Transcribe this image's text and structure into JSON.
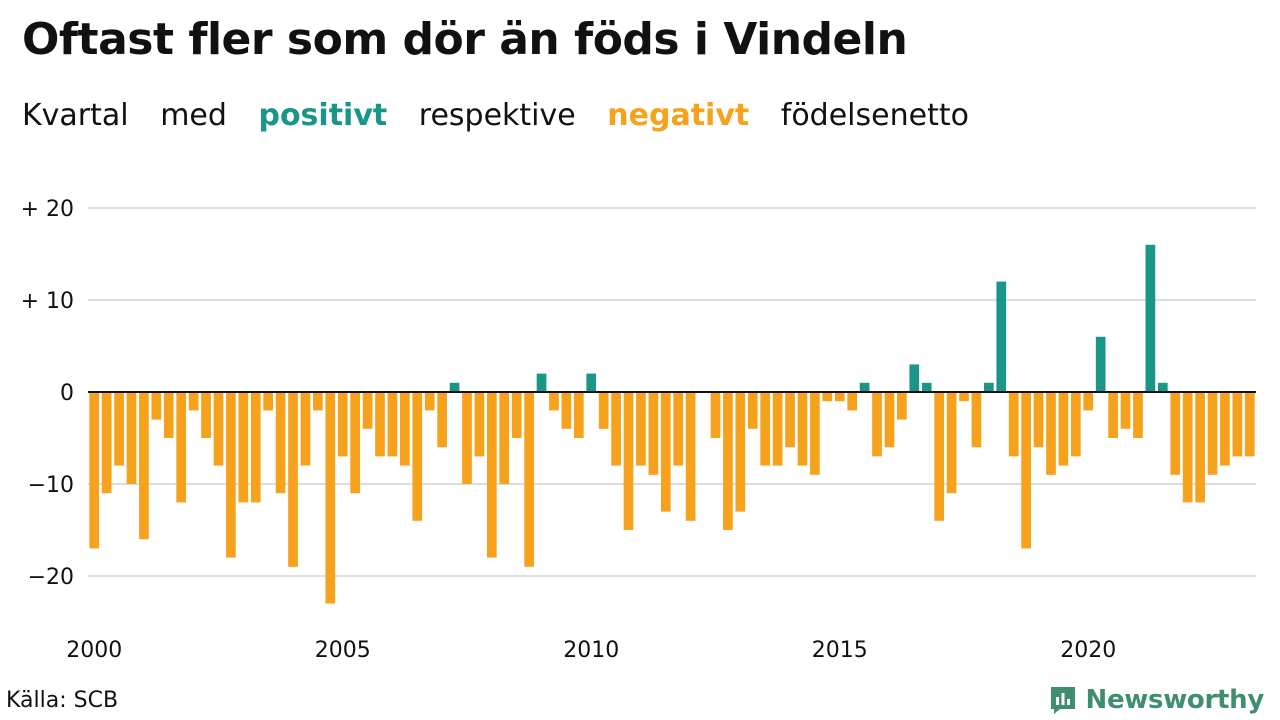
{
  "colors": {
    "positive": "#1a9688",
    "negative": "#f7a21d",
    "grid": "#dddddd",
    "baseline": "#111111",
    "brand": "#3f8f6f"
  },
  "header": {
    "title": "Oftast fler som dör än föds i Vindeln",
    "subtitle_parts": [
      "Kvartal",
      "med",
      "positivt",
      "respektive",
      "negativt",
      "födelsenetto"
    ]
  },
  "footer": {
    "source": "Källa: SCB",
    "brand": "Newsworthy",
    "brand_icon": "bar-chart-logo-icon"
  },
  "chart_data": {
    "type": "bar",
    "title": "Oftast fler som dör än föds i Vindeln",
    "subtitle": "Kvartal med positivt respektive negativt födelsenetto",
    "xlabel": "",
    "ylabel": "",
    "start_year": 2000,
    "quarters_per_year": 4,
    "x_tick_labels": [
      "2000",
      "2005",
      "2010",
      "2015",
      "2020"
    ],
    "y_ticks": [
      20,
      10,
      0,
      -10,
      -20
    ],
    "y_tick_labels": [
      "+ 20",
      "+ 10",
      "0",
      "−10",
      "−20"
    ],
    "ylim": [
      -25,
      20
    ],
    "grid": true,
    "values": [
      -17,
      -11,
      -8,
      -10,
      -16,
      -3,
      -5,
      -12,
      -2,
      -5,
      -8,
      -18,
      -12,
      -12,
      -2,
      -11,
      -19,
      -8,
      -2,
      -23,
      -7,
      -11,
      -4,
      -7,
      -7,
      -8,
      -14,
      -2,
      -6,
      1,
      -10,
      -7,
      -18,
      -10,
      -5,
      -19,
      2,
      -2,
      -4,
      -5,
      2,
      -4,
      -8,
      -15,
      -8,
      -9,
      -13,
      -8,
      -14,
      0,
      -5,
      -15,
      -13,
      -4,
      -8,
      -8,
      -6,
      -8,
      -9,
      -1,
      -1,
      -2,
      1,
      -7,
      -6,
      -3,
      3,
      1,
      -14,
      -11,
      -1,
      -6,
      1,
      12,
      -7,
      -17,
      -6,
      -9,
      -8,
      -7,
      -2,
      6,
      -5,
      -4,
      -5,
      16,
      1,
      -9,
      -12,
      -12,
      -9,
      -8,
      -7,
      -7
    ]
  }
}
